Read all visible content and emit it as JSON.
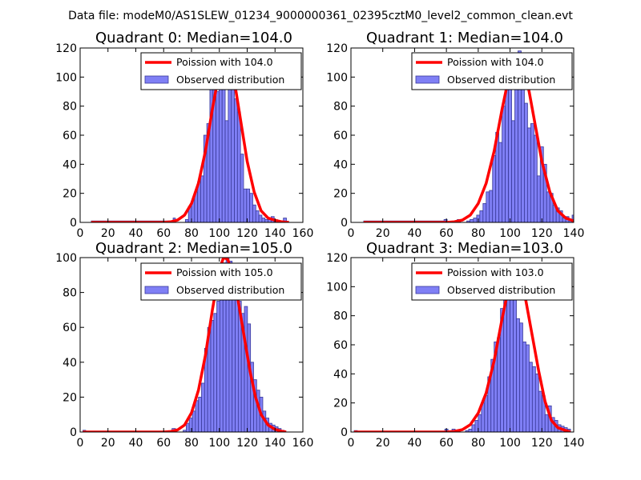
{
  "figure_title": "Data file: modeM0/AS1SLEW_01234_9000000361_02395cztM0_level2_common_clean.evt",
  "colors": {
    "bar_fill": "#7f7ff5",
    "bar_edge": "#3a3a9a",
    "poisson_line": "#ff0000",
    "axes": "#000000",
    "legend_edge": "#000000"
  },
  "chart_data": [
    {
      "type": "bar",
      "title": "Quadrant 0: Median=104.0",
      "xlim": [
        0,
        160
      ],
      "ylim": [
        0,
        120
      ],
      "xticks": [
        0,
        20,
        40,
        60,
        80,
        100,
        120,
        140,
        160
      ],
      "yticks": [
        0,
        20,
        40,
        60,
        80,
        100,
        120
      ],
      "legend": {
        "placement": "top-right",
        "line_label": "Poission with 104.0",
        "bar_label": "Observed distribution"
      },
      "bin_edges": [
        8,
        66.8,
        68.4,
        75.6,
        77.8,
        80,
        82.2,
        84.4,
        86.6,
        88.8,
        91,
        93.2,
        95.4,
        97.6,
        99.8,
        102,
        104.2,
        106.4,
        108.6,
        110.8,
        113,
        115.2,
        117.4,
        119.6,
        121.8,
        124,
        126.2,
        128.4,
        130.6,
        132.8,
        135,
        137.2,
        139.4,
        141.6,
        143.8,
        146,
        148.2
      ],
      "counts": [
        1,
        3,
        0,
        2,
        11,
        15,
        21,
        28,
        32,
        60,
        68,
        95,
        100,
        90,
        97,
        100,
        70,
        97,
        102,
        85,
        76,
        47,
        23,
        23,
        20,
        12,
        8,
        5,
        3,
        2,
        2,
        4,
        2,
        1,
        1,
        3
      ],
      "poisson": {
        "x": [
          8,
          60,
          65,
          70,
          75,
          80,
          85,
          90,
          95,
          100,
          104,
          108,
          112,
          116,
          120,
          125,
          130,
          135,
          140,
          145,
          150
        ],
        "y": [
          0,
          0,
          0.4,
          1.6,
          5,
          13,
          27,
          49,
          78,
          104,
          113,
          108,
          90,
          66,
          42,
          21,
          8,
          3,
          1.5,
          0.4,
          0
        ]
      }
    },
    {
      "type": "bar",
      "title": "Quadrant 1: Median=104.0",
      "xlim": [
        0,
        140
      ],
      "ylim": [
        0,
        120
      ],
      "xticks": [
        0,
        20,
        40,
        60,
        80,
        100,
        120,
        140
      ],
      "yticks": [
        0,
        20,
        40,
        60,
        80,
        100,
        120
      ],
      "legend": {
        "placement": "top-right",
        "line_label": "Poission with 104.0",
        "bar_label": "Observed distribution"
      },
      "bin_edges": [
        8,
        58.5,
        60.5,
        66.8,
        68.8,
        72.8,
        74.8,
        77,
        79,
        81,
        83,
        85,
        87,
        89,
        91,
        93,
        95,
        97,
        99,
        101,
        103,
        105,
        107,
        109,
        111,
        113,
        115,
        117,
        119,
        121,
        123,
        125,
        127,
        129,
        131,
        133,
        135,
        137,
        139,
        141
      ],
      "counts": [
        1,
        2,
        0,
        2,
        0,
        1,
        2,
        3,
        5,
        8,
        13,
        21,
        22,
        46,
        62,
        55,
        80,
        116,
        104,
        70,
        103,
        118,
        98,
        82,
        65,
        68,
        60,
        32,
        52,
        40,
        21,
        20,
        12,
        10,
        8,
        3,
        4,
        2,
        5
      ],
      "poisson": {
        "x": [
          8,
          60,
          65,
          70,
          75,
          80,
          85,
          90,
          95,
          100,
          104,
          108,
          112,
          116,
          120,
          125,
          130,
          135,
          140
        ],
        "y": [
          0,
          0,
          0.4,
          1.6,
          5,
          13,
          27,
          49,
          78,
          104,
          116,
          108,
          90,
          66,
          42,
          21,
          8,
          3,
          1
        ]
      }
    },
    {
      "type": "bar",
      "title": "Quadrant 2: Median=105.0",
      "xlim": [
        0,
        160
      ],
      "ylim": [
        0,
        100
      ],
      "xticks": [
        0,
        20,
        40,
        60,
        80,
        100,
        120,
        140,
        160
      ],
      "yticks": [
        0,
        20,
        40,
        60,
        80,
        100
      ],
      "legend": {
        "placement": "top-right",
        "line_label": "Poission with 105.0",
        "bar_label": "Observed distribution"
      },
      "bin_edges": [
        2,
        4,
        66,
        68.5,
        74,
        76.2,
        78.4,
        80.6,
        82.8,
        85,
        87.2,
        89.4,
        91.6,
        93.8,
        96,
        98.2,
        100.4,
        102.6,
        104.8,
        107,
        109.2,
        111.4,
        113.6,
        115.8,
        118,
        120.2,
        122.4,
        124.6,
        126.8,
        129,
        131.2,
        133.4,
        135.6,
        137.8,
        140,
        142.2,
        144.4,
        146.6
      ],
      "counts": [
        1,
        0,
        2,
        0,
        1,
        5,
        8,
        12,
        18,
        20,
        28,
        48,
        60,
        64,
        68,
        75,
        80,
        97,
        100,
        98,
        90,
        80,
        75,
        68,
        72,
        62,
        40,
        30,
        24,
        20,
        12,
        8,
        5,
        4,
        3,
        2,
        1
      ],
      "poisson": {
        "x": [
          2,
          60,
          65,
          70,
          75,
          80,
          85,
          90,
          95,
          100,
          103,
          106,
          110,
          114,
          118,
          122,
          126,
          130,
          135,
          140,
          145,
          148
        ],
        "y": [
          0,
          0,
          0.3,
          1.2,
          4,
          11,
          24,
          44,
          70,
          93,
          100,
          99,
          90,
          73,
          54,
          35,
          20,
          10,
          4,
          1.5,
          0.4,
          0
        ]
      }
    },
    {
      "type": "bar",
      "title": "Quadrant 3: Median=103.0",
      "xlim": [
        0,
        140
      ],
      "ylim": [
        0,
        120
      ],
      "xticks": [
        0,
        20,
        40,
        60,
        80,
        100,
        120,
        140
      ],
      "yticks": [
        0,
        20,
        40,
        60,
        80,
        100,
        120
      ],
      "legend": {
        "placement": "top-right",
        "line_label": "Poission with 103.0",
        "bar_label": "Observed distribution"
      },
      "bin_edges": [
        2,
        4,
        59,
        61,
        63.5,
        65.5,
        72,
        74,
        76,
        78,
        80,
        82,
        84,
        86,
        88,
        90,
        92,
        94,
        96,
        98,
        100,
        102,
        104,
        106,
        108,
        110,
        112,
        114,
        116,
        118,
        120,
        122,
        124,
        126,
        128,
        130,
        132,
        134,
        136,
        138
      ],
      "counts": [
        1,
        0,
        2,
        0,
        2,
        0,
        1,
        2,
        5,
        8,
        12,
        20,
        25,
        38,
        50,
        62,
        65,
        85,
        100,
        110,
        115,
        98,
        78,
        75,
        62,
        60,
        48,
        45,
        40,
        28,
        25,
        12,
        18,
        10,
        8,
        5,
        4,
        3,
        2
      ],
      "poisson": {
        "x": [
          2,
          60,
          65,
          70,
          75,
          80,
          85,
          90,
          95,
          100,
          103,
          106,
          110,
          114,
          118,
          122,
          126,
          130,
          135,
          138
        ],
        "y": [
          0,
          0,
          0.4,
          1.6,
          5,
          13,
          27,
          49,
          78,
          104,
          115,
          108,
          90,
          66,
          42,
          21,
          8,
          3,
          1,
          0
        ]
      }
    }
  ]
}
